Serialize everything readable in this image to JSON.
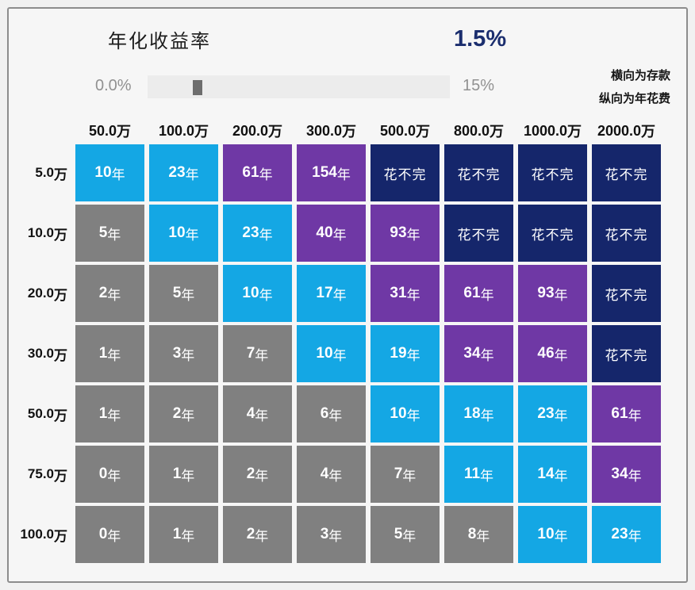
{
  "controls": {
    "title": "年化收益率",
    "value": "1.5%",
    "slider": {
      "min_label": "0.0%",
      "max_label": "15%",
      "handle_percent": 15
    }
  },
  "notes": {
    "line1": "横向为存款",
    "line2": "纵向为年花费"
  },
  "chart_data": {
    "type": "heatmap",
    "title": "年化收益率 1.5% — 存款可支撑年数",
    "xlabel": "横向为存款",
    "ylabel": "纵向为年花费",
    "columns": [
      "50.0万",
      "100.0万",
      "200.0万",
      "300.0万",
      "500.0万",
      "800.0万",
      "1000.0万",
      "2000.0万"
    ],
    "rows": [
      "5.0万",
      "10.0万",
      "20.0万",
      "30.0万",
      "50.0万",
      "75.0万",
      "100.0万"
    ],
    "values": [
      [
        "10年",
        "23年",
        "61年",
        "154年",
        "花不完",
        "花不完",
        "花不完",
        "花不完"
      ],
      [
        "5年",
        "10年",
        "23年",
        "40年",
        "93年",
        "花不完",
        "花不完",
        "花不完"
      ],
      [
        "2年",
        "5年",
        "10年",
        "17年",
        "31年",
        "61年",
        "93年",
        "花不完"
      ],
      [
        "1年",
        "3年",
        "7年",
        "10年",
        "19年",
        "34年",
        "46年",
        "花不完"
      ],
      [
        "1年",
        "2年",
        "4年",
        "6年",
        "10年",
        "18年",
        "23年",
        "61年"
      ],
      [
        "0年",
        "1年",
        "2年",
        "4年",
        "7年",
        "11年",
        "14年",
        "34年"
      ],
      [
        "0年",
        "1年",
        "2年",
        "3年",
        "5年",
        "8年",
        "10年",
        "23年"
      ]
    ],
    "cell_colors": [
      [
        "cyan",
        "cyan",
        "purple",
        "purple",
        "navy",
        "navy",
        "navy",
        "navy"
      ],
      [
        "gray",
        "cyan",
        "cyan",
        "purple",
        "purple",
        "navy",
        "navy",
        "navy"
      ],
      [
        "gray",
        "gray",
        "cyan",
        "cyan",
        "purple",
        "purple",
        "purple",
        "navy"
      ],
      [
        "gray",
        "gray",
        "gray",
        "cyan",
        "cyan",
        "purple",
        "purple",
        "navy"
      ],
      [
        "gray",
        "gray",
        "gray",
        "gray",
        "cyan",
        "cyan",
        "cyan",
        "purple"
      ],
      [
        "gray",
        "gray",
        "gray",
        "gray",
        "gray",
        "cyan",
        "cyan",
        "purple"
      ],
      [
        "gray",
        "gray",
        "gray",
        "gray",
        "gray",
        "gray",
        "cyan",
        "cyan"
      ]
    ],
    "palette": {
      "cyan": "#14a7e4",
      "gray": "#808080",
      "purple": "#6f38a5",
      "navy": "#15266b",
      "value_text": "#1b2e6e",
      "slider_label": "#919191"
    },
    "legend": "none",
    "grid": "off"
  }
}
